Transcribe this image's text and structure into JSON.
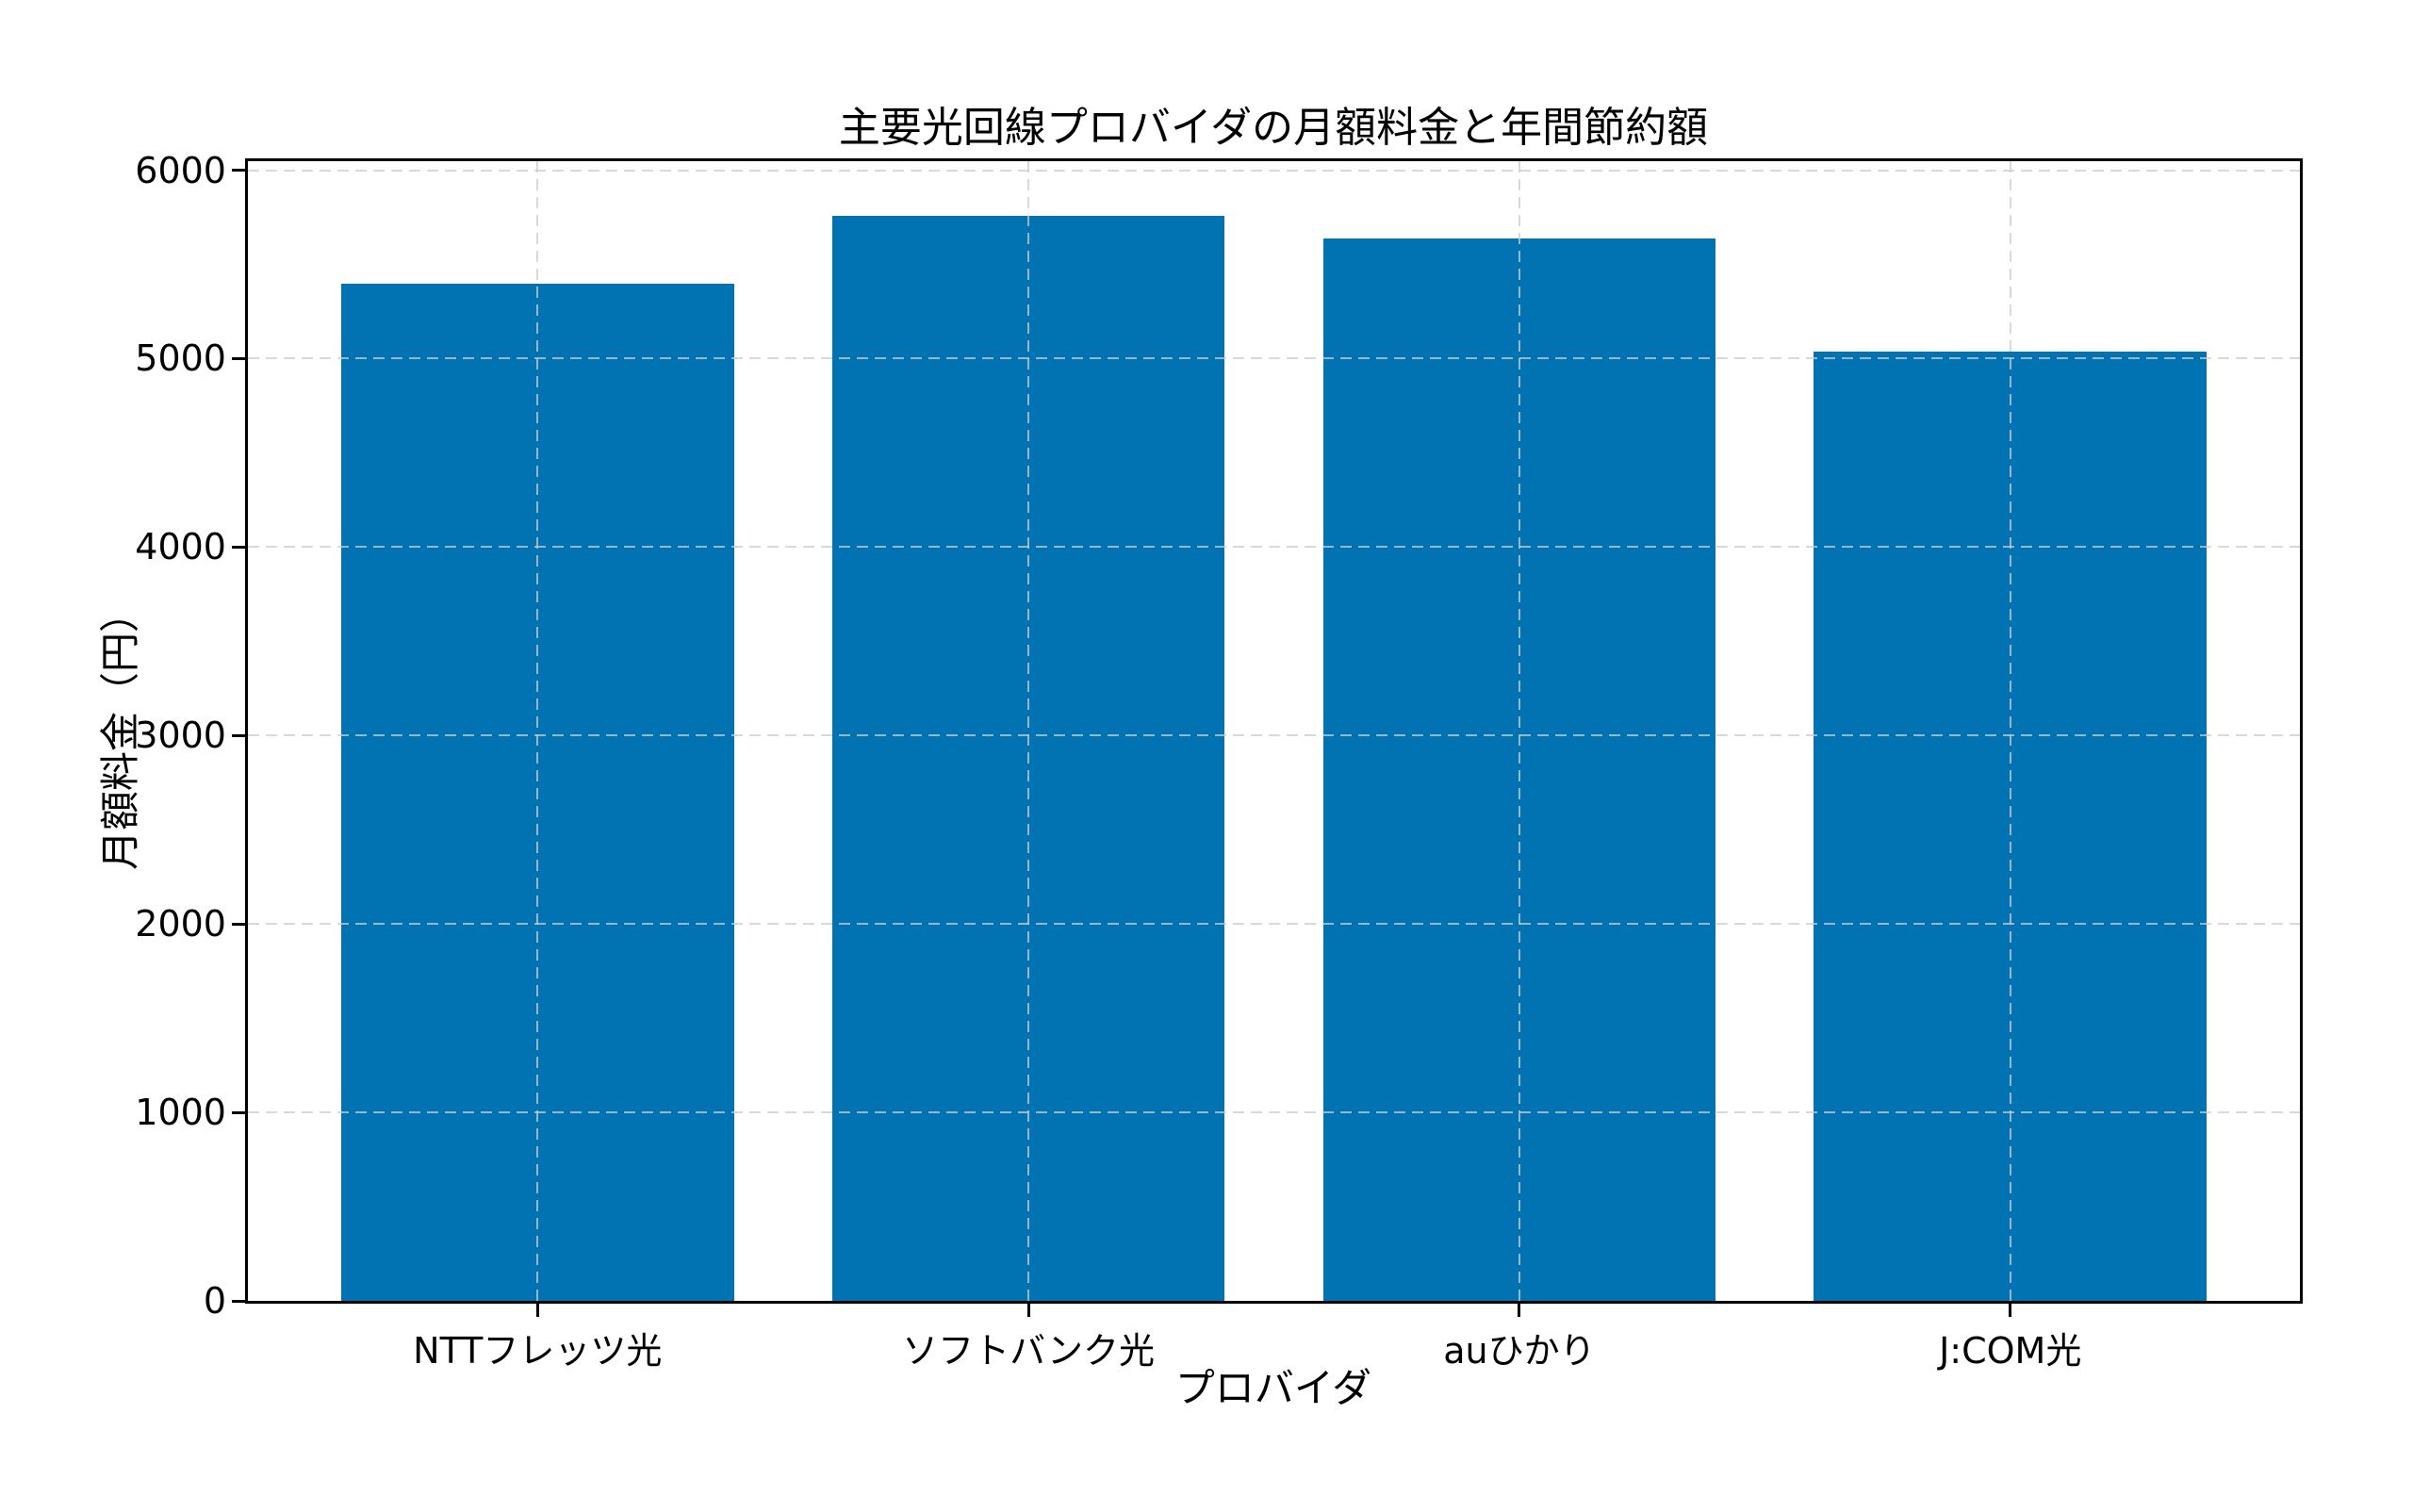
{
  "chart_data": {
    "type": "bar",
    "title": "主要光回線プロバイダの月額料金と年間節約額",
    "xlabel": "プロバイダ",
    "ylabel": "月額料金（円）",
    "categories": [
      "NTTフレッツ光",
      "ソフトバンク光",
      "auひかり",
      "J:COM光"
    ],
    "values": [
      5400,
      5760,
      5640,
      5040
    ],
    "yticks": [
      0,
      1000,
      2000,
      3000,
      4000,
      5000,
      6000
    ],
    "ylim": [
      0,
      6048
    ],
    "grid": true,
    "grid_linestyle": "dashed",
    "grid_axes": "both",
    "grid_over_bars": true,
    "legend_position": "none",
    "bar_color": "#0173b2",
    "grid_color": "#cccccc",
    "axis_color": "#000000",
    "text_color": "#000000",
    "background_color": "#ffffff"
  }
}
